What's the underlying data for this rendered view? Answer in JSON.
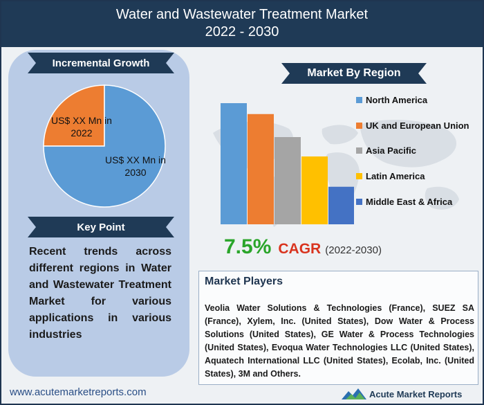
{
  "header": {
    "title": "Water and Wastewater Treatment Market",
    "years": "2022 - 2030"
  },
  "incremental": {
    "ribbon": "Incremental Growth",
    "label_2022": "US$ XX Mn in 2022",
    "label_2030": "US$ XX Mn in 2030"
  },
  "keypoint": {
    "ribbon": "Key Point",
    "text": "Recent trends across different regions in Water and Wastewater Treatment Market for various applications in various industries"
  },
  "region": {
    "ribbon": "Market By Region"
  },
  "cagr": {
    "value": "7.5%",
    "label": "CAGR",
    "period": "(2022-2030)"
  },
  "players": {
    "title": "Market Players",
    "text": "Veolia Water Solutions & Technologies (France), SUEZ SA (France), Xylem, Inc. (United States), Dow Water & Process Solutions (United States), GE Water & Process Technologies (United States), Evoqua Water Technologies LLC (United States), Aquatech International LLC (United States), Ecolab, Inc. (United States), 3M and Others."
  },
  "footer": {
    "url": "www.acutemarketreports.com",
    "logo_text": "Acute Market Reports"
  },
  "colors": {
    "header_bg": "#1f3a56",
    "ribbon": "#1f3a56",
    "panel": "#b9cbe6",
    "pie_2022": "#ed7d31",
    "pie_2030": "#5b9bd5",
    "cagr_green": "#2aa52a",
    "cagr_red": "#d9341f"
  },
  "chart_data": [
    {
      "type": "pie",
      "labels": [
        "US$ XX Mn in 2022",
        "US$ XX Mn in 2030"
      ],
      "values": [
        25,
        75
      ],
      "colors": [
        "#ed7d31",
        "#5b9bd5"
      ]
    },
    {
      "type": "bar",
      "categories": [
        "North America",
        "UK and European Union",
        "Asia Pacific",
        "Latin America",
        "Middle East & Africa"
      ],
      "values": [
        100,
        91,
        72,
        56,
        31
      ],
      "colors": [
        "#5b9bd5",
        "#ed7d31",
        "#a5a5a5",
        "#ffc000",
        "#4472c4"
      ],
      "legend_position": "right",
      "grid": false
    }
  ]
}
